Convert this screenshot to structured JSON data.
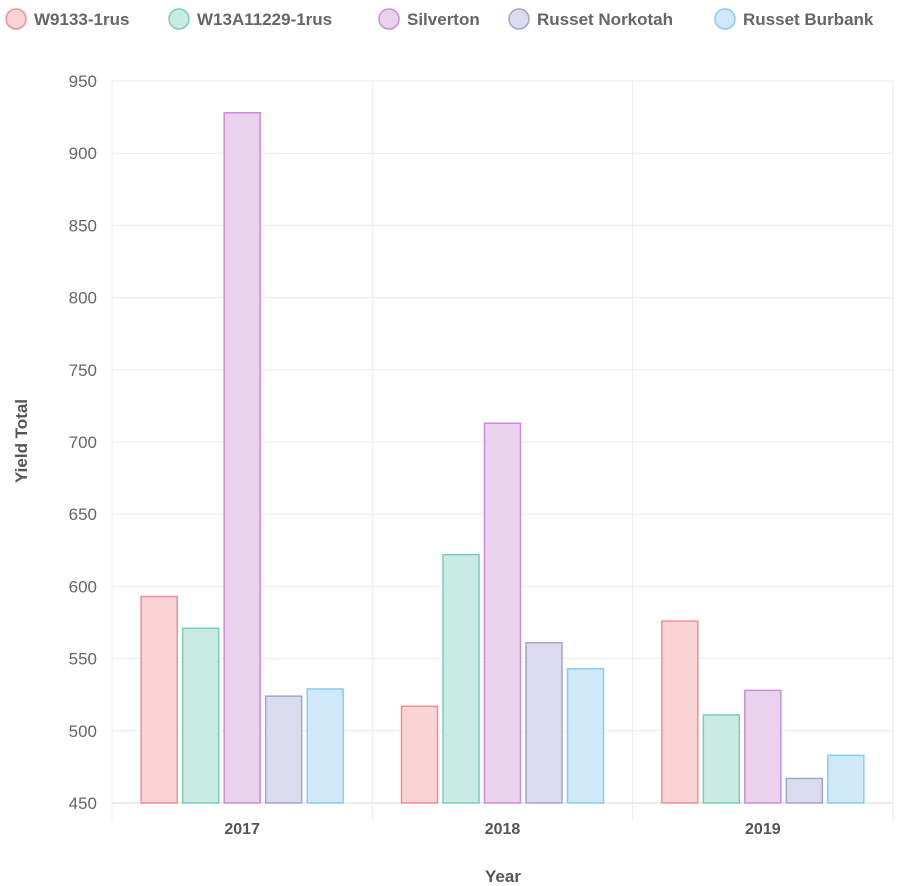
{
  "chart_data": {
    "type": "bar",
    "categories": [
      "2017",
      "2018",
      "2019"
    ],
    "series": [
      {
        "name": "W9133-1rus",
        "values": [
          593,
          517,
          576
        ],
        "fill": "#f9d3d5",
        "stroke": "#f08f96"
      },
      {
        "name": "W13A11229-1rus",
        "values": [
          571,
          622,
          511
        ],
        "fill": "#c8ebe3",
        "stroke": "#7cccbc"
      },
      {
        "name": "Silverton",
        "values": [
          928,
          713,
          528
        ],
        "fill": "#ead2ee",
        "stroke": "#c98ed5"
      },
      {
        "name": "Russet Norkotah",
        "values": [
          524,
          561,
          467
        ],
        "fill": "#dadcee",
        "stroke": "#a2a6cf"
      },
      {
        "name": "Russet Burbank",
        "values": [
          529,
          543,
          483
        ],
        "fill": "#cfe9fb",
        "stroke": "#8ccaf3"
      }
    ],
    "xlabel": "Year",
    "ylabel": "Yield Total",
    "ylim": [
      450,
      950
    ],
    "yticks": [
      450,
      500,
      550,
      600,
      650,
      700,
      750,
      800,
      850,
      900,
      950
    ],
    "grid": true,
    "legend": "top"
  }
}
